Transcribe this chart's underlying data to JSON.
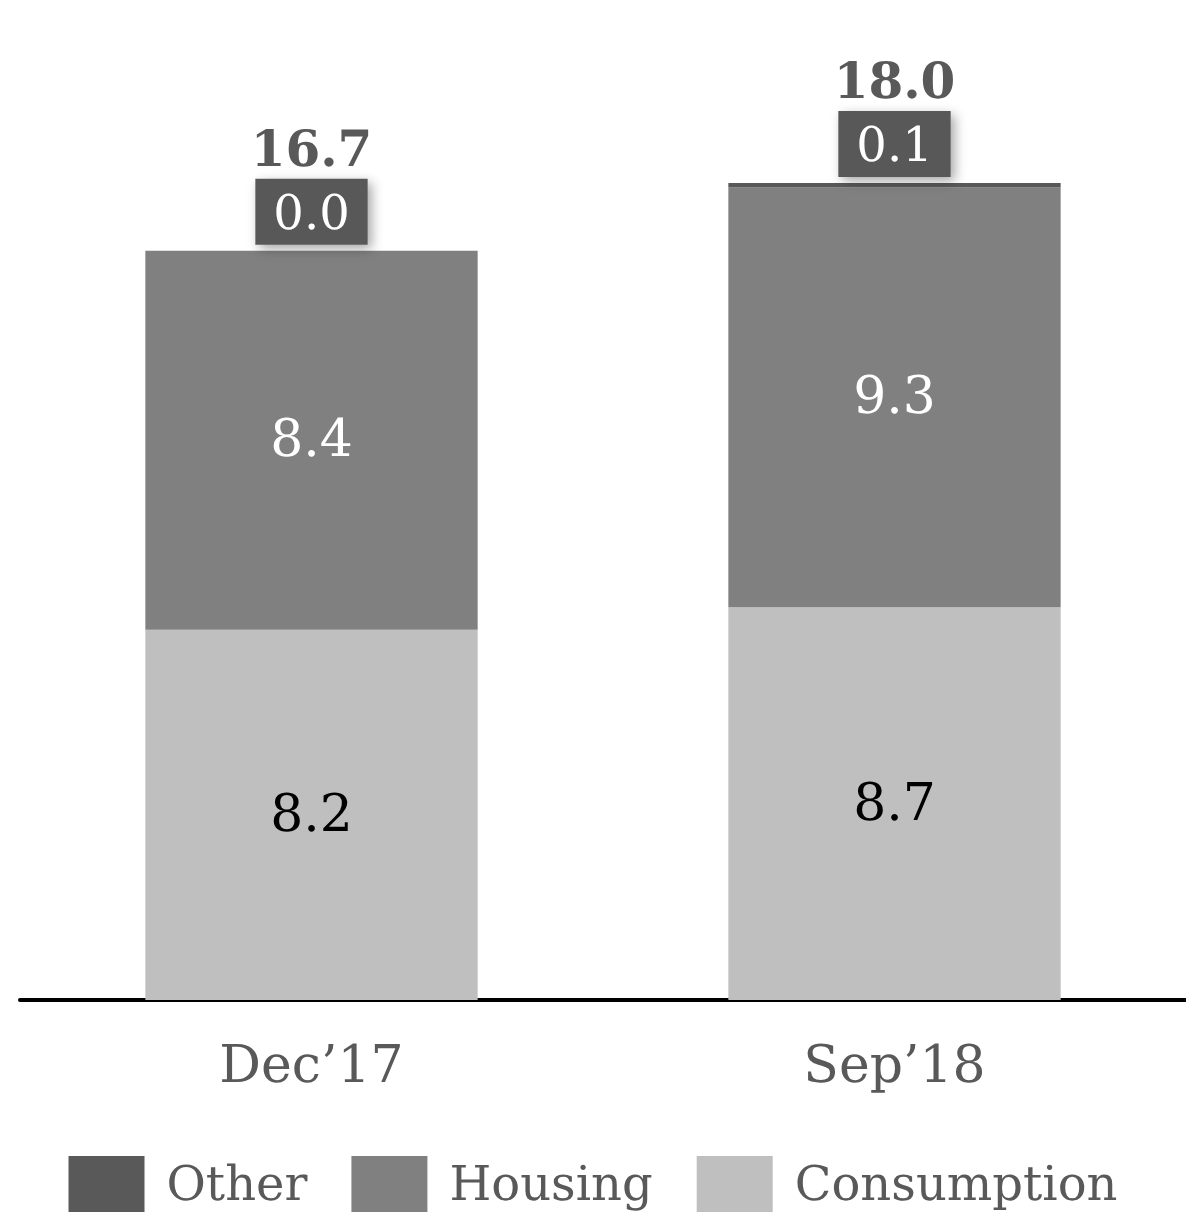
{
  "chart_data": {
    "type": "bar",
    "stacked": true,
    "categories": [
      "Dec’17",
      "Sep’18"
    ],
    "series": [
      {
        "name": "Consumption",
        "color": "#bfbfbf",
        "values": [
          8.2,
          8.7
        ],
        "value_labels": [
          "8.2",
          "8.7"
        ]
      },
      {
        "name": "Housing",
        "color": "#808080",
        "values": [
          8.4,
          9.3
        ],
        "value_labels": [
          "8.4",
          "9.3"
        ]
      },
      {
        "name": "Other",
        "color": "#595959",
        "values": [
          0.0,
          0.1
        ],
        "value_labels": [
          "0.0",
          "0.1"
        ]
      }
    ],
    "totals": [
      "16.7",
      "18.0"
    ],
    "legend": "bottom"
  }
}
